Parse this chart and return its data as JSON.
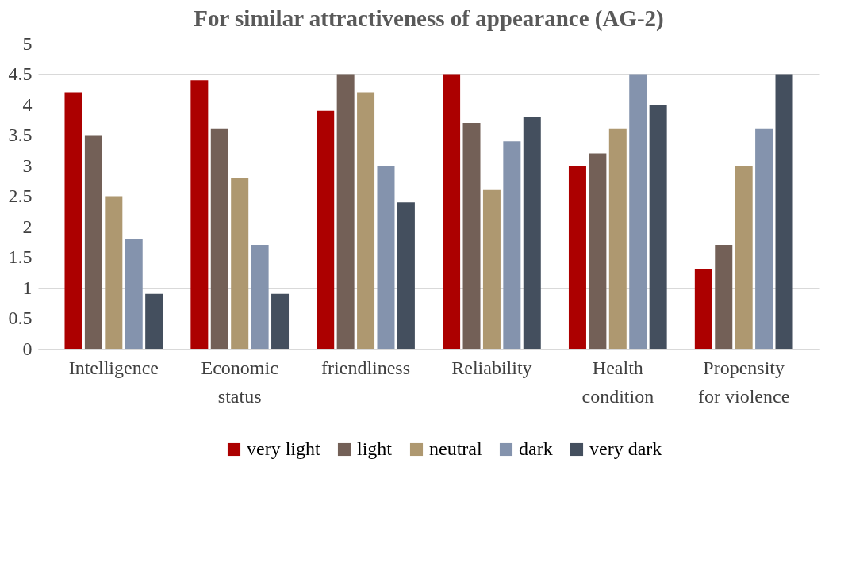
{
  "chart_data": {
    "type": "bar",
    "title": "For similar attractiveness of appearance (AG-2)",
    "categories": [
      "Intelligence",
      "Economic status",
      "friendliness",
      "Reliability",
      "Health condition",
      "Propensity for violence"
    ],
    "series": [
      {
        "name": "very light",
        "color": "#ac0000",
        "values": [
          4.2,
          4.4,
          3.9,
          4.5,
          3.0,
          1.3
        ]
      },
      {
        "name": "light",
        "color": "#736057",
        "values": [
          3.5,
          3.6,
          4.5,
          3.7,
          3.2,
          1.7
        ]
      },
      {
        "name": "neutral",
        "color": "#ae9870",
        "values": [
          2.5,
          2.8,
          4.2,
          2.6,
          3.6,
          3.0
        ]
      },
      {
        "name": "dark",
        "color": "#8493ad",
        "values": [
          1.8,
          1.7,
          3.0,
          3.4,
          4.5,
          3.6
        ]
      },
      {
        "name": "very dark",
        "color": "#444f5e",
        "values": [
          0.9,
          0.9,
          2.4,
          3.8,
          4.0,
          4.5
        ]
      }
    ],
    "ylim": [
      0,
      5
    ],
    "yticks": [
      0,
      0.5,
      1,
      1.5,
      2,
      2.5,
      3,
      3.5,
      4,
      4.5,
      5
    ],
    "grid": "y",
    "legend": "bottom"
  }
}
